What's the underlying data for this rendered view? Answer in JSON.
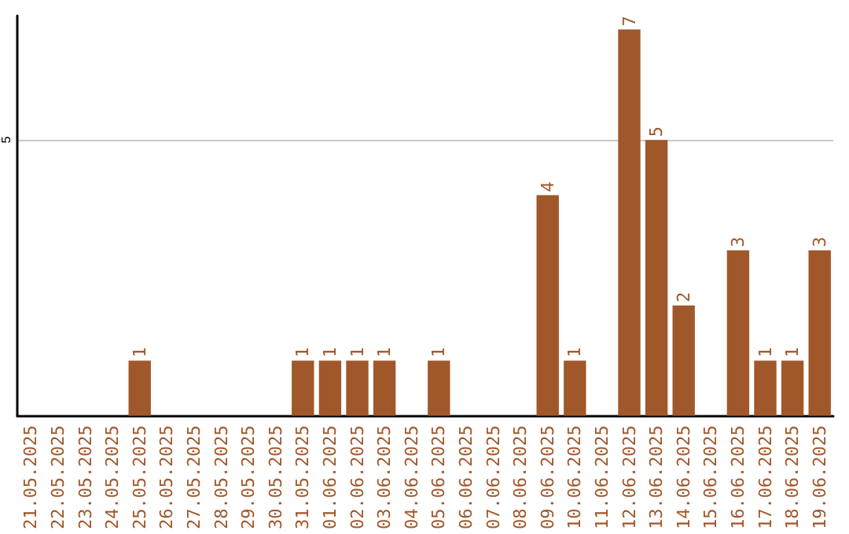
{
  "chart_data": {
    "type": "bar",
    "categories": [
      "21.05.2025",
      "22.05.2025",
      "23.05.2025",
      "24.05.2025",
      "25.05.2025",
      "26.05.2025",
      "27.05.2025",
      "28.05.2025",
      "29.05.2025",
      "30.05.2025",
      "31.05.2025",
      "01.06.2025",
      "02.06.2025",
      "03.06.2025",
      "04.06.2025",
      "05.06.2025",
      "06.06.2025",
      "07.06.2025",
      "08.06.2025",
      "09.06.2025",
      "10.06.2025",
      "11.06.2025",
      "12.06.2025",
      "13.06.2025",
      "14.06.2025",
      "15.06.2025",
      "16.06.2025",
      "17.06.2025",
      "18.06.2025",
      "19.06.2025"
    ],
    "values": [
      0,
      0,
      0,
      0,
      1,
      0,
      0,
      0,
      0,
      0,
      1,
      1,
      1,
      1,
      0,
      1,
      0,
      0,
      0,
      4,
      1,
      0,
      7,
      5,
      2,
      0,
      3,
      1,
      1,
      3
    ],
    "value_labels": [
      null,
      null,
      null,
      null,
      "1",
      null,
      null,
      null,
      null,
      null,
      "1",
      "1",
      "1",
      "1",
      null,
      "1",
      null,
      null,
      null,
      "4",
      "1",
      null,
      "7",
      "5",
      "2",
      null,
      "3",
      "1",
      "1",
      "3"
    ],
    "color": "#a0572a",
    "ylim": [
      0,
      7.25
    ],
    "yticks": [
      5
    ],
    "grid": "y"
  }
}
